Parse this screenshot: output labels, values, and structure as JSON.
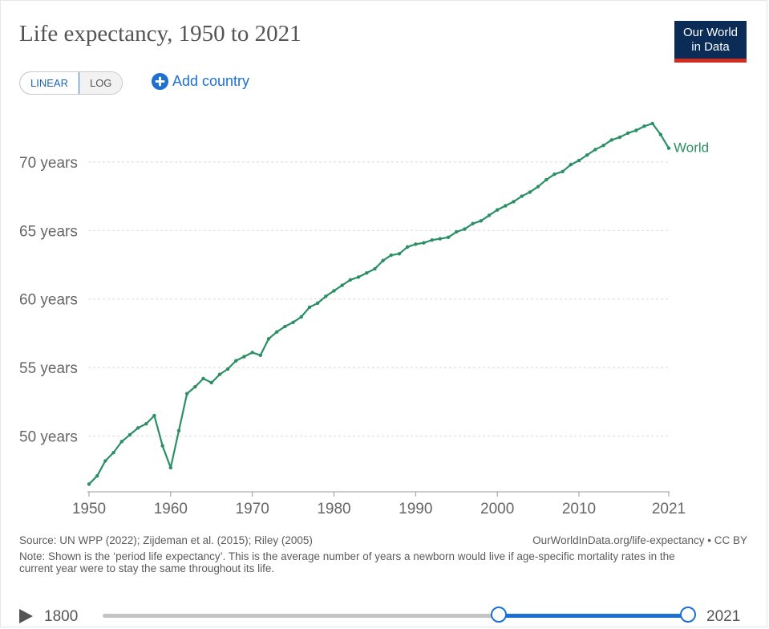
{
  "header": {
    "title": "Life expectancy, 1950 to 2021",
    "logo_line1": "Our World",
    "logo_line2": "in Data"
  },
  "controls": {
    "linear_label": "LINEAR",
    "log_label": "LOG",
    "active_scale": "LINEAR",
    "add_country_label": "Add country"
  },
  "colors": {
    "series": "#2a8f63",
    "accent": "#1d6fd1",
    "logo_bg": "#0b2c57",
    "logo_bar": "#d42b21"
  },
  "chart_data": {
    "type": "line",
    "title": "Life expectancy, 1950 to 2021",
    "xlabel": "",
    "ylabel": "",
    "ylim": [
      46,
      73.5
    ],
    "xlim": [
      1950,
      2021
    ],
    "grid": true,
    "y_ticks": [
      {
        "value": 50,
        "label": "50 years"
      },
      {
        "value": 55,
        "label": "55 years"
      },
      {
        "value": 60,
        "label": "60 years"
      },
      {
        "value": 65,
        "label": "65 years"
      },
      {
        "value": 70,
        "label": "70 years"
      }
    ],
    "x_ticks": [
      {
        "value": 1950,
        "label": "1950"
      },
      {
        "value": 1960,
        "label": "1960"
      },
      {
        "value": 1970,
        "label": "1970"
      },
      {
        "value": 1980,
        "label": "1980"
      },
      {
        "value": 1990,
        "label": "1990"
      },
      {
        "value": 2000,
        "label": "2000"
      },
      {
        "value": 2010,
        "label": "2010"
      },
      {
        "value": 2021,
        "label": "2021"
      }
    ],
    "series": [
      {
        "name": "World",
        "x": [
          1950,
          1951,
          1952,
          1953,
          1954,
          1955,
          1956,
          1957,
          1958,
          1959,
          1960,
          1961,
          1962,
          1963,
          1964,
          1965,
          1966,
          1967,
          1968,
          1969,
          1970,
          1971,
          1972,
          1973,
          1974,
          1975,
          1976,
          1977,
          1978,
          1979,
          1980,
          1981,
          1982,
          1983,
          1984,
          1985,
          1986,
          1987,
          1988,
          1989,
          1990,
          1991,
          1992,
          1993,
          1994,
          1995,
          1996,
          1997,
          1998,
          1999,
          2000,
          2001,
          2002,
          2003,
          2004,
          2005,
          2006,
          2007,
          2008,
          2009,
          2010,
          2011,
          2012,
          2013,
          2014,
          2015,
          2016,
          2017,
          2018,
          2019,
          2020,
          2021
        ],
        "values": [
          46.5,
          47.1,
          48.2,
          48.8,
          49.6,
          50.1,
          50.6,
          50.9,
          51.5,
          49.3,
          47.7,
          50.4,
          53.1,
          53.6,
          54.2,
          53.9,
          54.5,
          54.9,
          55.5,
          55.8,
          56.1,
          55.9,
          57.1,
          57.6,
          58.0,
          58.3,
          58.7,
          59.4,
          59.7,
          60.2,
          60.6,
          61.0,
          61.4,
          61.6,
          61.9,
          62.2,
          62.8,
          63.2,
          63.3,
          63.8,
          64.0,
          64.1,
          64.3,
          64.4,
          64.5,
          64.9,
          65.1,
          65.5,
          65.7,
          66.1,
          66.5,
          66.8,
          67.1,
          67.5,
          67.8,
          68.2,
          68.7,
          69.1,
          69.3,
          69.8,
          70.1,
          70.5,
          70.9,
          71.2,
          71.6,
          71.8,
          72.1,
          72.3,
          72.6,
          72.8,
          72.0,
          71.0
        ]
      }
    ]
  },
  "footer": {
    "source": "Source: UN WPP (2022); Zijdeman et al. (2015); Riley (2005)",
    "link": "OurWorldInData.org/life-expectancy • CC BY",
    "note": "Note: Shown is the ‘period life expectancy’. This is the average number of years a newborn would live if age-specific mortality rates in the current year were to stay the same throughout its life."
  },
  "timeline": {
    "start_label": "1800",
    "end_label": "2021",
    "range_start": 1950,
    "range_end": 2021
  }
}
